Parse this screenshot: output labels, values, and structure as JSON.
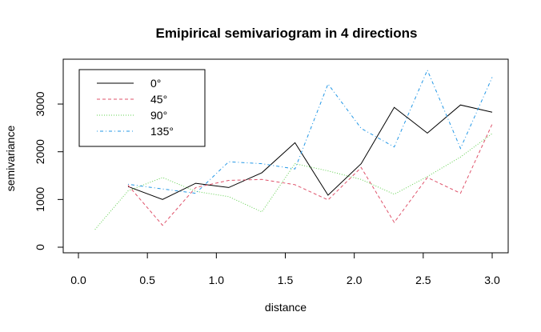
{
  "chart_data": {
    "type": "line",
    "title": "Emipirical semivariogram in 4 directions",
    "xlabel": "distance",
    "ylabel": "semivariance",
    "xlim": [
      0.0,
      3.0
    ],
    "ylim": [
      0,
      3900
    ],
    "x_ticks": [
      "0.0",
      "0.5",
      "1.0",
      "1.5",
      "2.0",
      "2.5",
      "3.0"
    ],
    "y_ticks": [
      "0",
      "1000",
      "2000",
      "3000"
    ],
    "legend_position": "top-left",
    "grid": false,
    "series": [
      {
        "name": "0°",
        "color": "#000000",
        "dash": "solid",
        "x": [
          0.36,
          0.61,
          0.85,
          1.09,
          1.33,
          1.57,
          1.81,
          2.05,
          2.29,
          2.53,
          2.77,
          3.0
        ],
        "y": [
          1270,
          1000,
          1340,
          1250,
          1560,
          2190,
          1090,
          1750,
          2930,
          2390,
          2980,
          2830
        ]
      },
      {
        "name": "45°",
        "color": "#DF536B",
        "dash": "dashed",
        "x": [
          0.36,
          0.61,
          0.85,
          1.09,
          1.33,
          1.57,
          1.81,
          2.05,
          2.29,
          2.53,
          2.77,
          3.0
        ],
        "y": [
          1300,
          460,
          1250,
          1400,
          1420,
          1310,
          990,
          1670,
          520,
          1460,
          1130,
          2580
        ]
      },
      {
        "name": "90°",
        "color": "#61D04F",
        "dash": "dotted",
        "x": [
          0.12,
          0.36,
          0.61,
          0.85,
          1.09,
          1.33,
          1.57,
          1.81,
          2.05,
          2.29,
          2.53,
          2.77,
          3.0
        ],
        "y": [
          370,
          1180,
          1460,
          1170,
          1060,
          740,
          1750,
          1600,
          1420,
          1110,
          1480,
          1890,
          2380
        ]
      },
      {
        "name": "135°",
        "color": "#2297E6",
        "dash": "dotdash",
        "x": [
          0.36,
          0.61,
          0.85,
          1.09,
          1.33,
          1.57,
          1.81,
          2.05,
          2.29,
          2.53,
          2.77,
          3.0
        ],
        "y": [
          1320,
          1220,
          1130,
          1790,
          1750,
          1640,
          3420,
          2490,
          2100,
          3710,
          2070,
          3560
        ]
      }
    ]
  }
}
